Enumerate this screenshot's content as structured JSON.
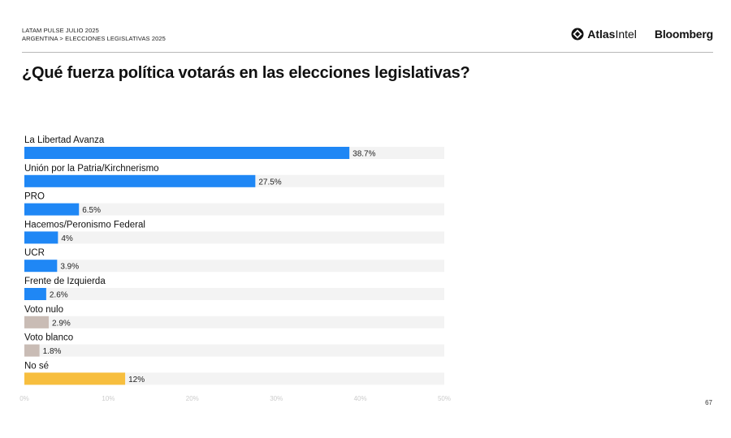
{
  "header": {
    "line1": "LATAM PULSE JULIO 2025",
    "line2": "ARGENTINA > ELECCIONES LEGISLATIVAS 2025"
  },
  "logos": {
    "atlas_part1": "Atlas",
    "atlas_part2": "Intel",
    "bloomberg": "Bloomberg"
  },
  "page_number": "67",
  "colors": {
    "party": "#1f87f5",
    "null_blank": "#c9bcb5",
    "dont_know": "#f7be3e",
    "track": "#f3f3f3",
    "axis_text": "#cccccc"
  },
  "chart_data": {
    "type": "bar",
    "orientation": "horizontal",
    "title": "¿Qué fuerza política votarás en las elecciones legislativas?",
    "xlim": [
      0,
      50
    ],
    "x_ticks": [
      0,
      10,
      20,
      30,
      40,
      50
    ],
    "x_tick_labels": [
      "0%",
      "10%",
      "20%",
      "30%",
      "40%",
      "50%"
    ],
    "categories": [
      "La Libertad Avanza",
      "Unión por la Patria/Kirchnerismo",
      "PRO",
      "Hacemos/Peronismo Federal",
      "UCR",
      "Frente de Izquierda",
      "Voto nulo",
      "Voto blanco",
      "No sé"
    ],
    "values": [
      38.7,
      27.5,
      6.5,
      4,
      3.9,
      2.6,
      2.9,
      1.8,
      12
    ],
    "value_labels": [
      "38.7%",
      "27.5%",
      "6.5%",
      "4%",
      "3.9%",
      "2.6%",
      "2.9%",
      "1.8%",
      "12%"
    ],
    "bar_colors": [
      "#1f87f5",
      "#1f87f5",
      "#1f87f5",
      "#1f87f5",
      "#1f87f5",
      "#1f87f5",
      "#c9bcb5",
      "#c9bcb5",
      "#f7be3e"
    ],
    "grid": false
  }
}
